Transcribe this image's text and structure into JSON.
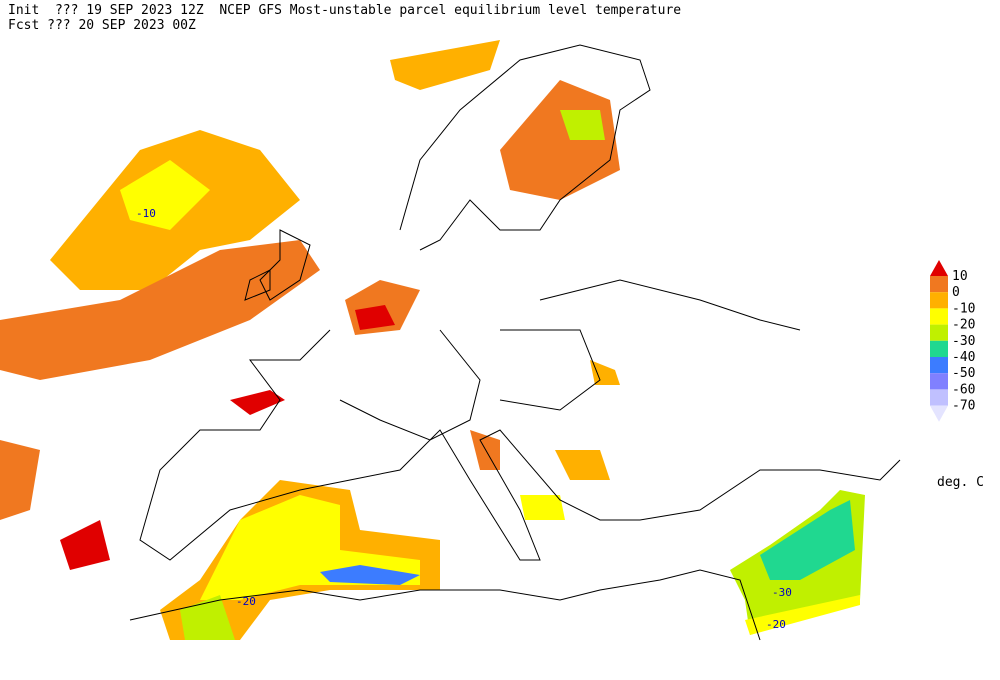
{
  "header": {
    "line1": "Init  ??? 19 SEP 2023 12Z  NCEP GFS Most-unstable parcel equilibrium level temperature",
    "line2": "Fcst ??? 20 SEP 2023 00Z"
  },
  "legend": {
    "labels": [
      10,
      0,
      -10,
      -20,
      -30,
      -40,
      -50,
      -60,
      -70
    ],
    "colors": [
      "#e00000",
      "#f07820",
      "#ffb000",
      "#ffff00",
      "#c0f000",
      "#20d890",
      "#3c7cff",
      "#8080ff",
      "#c0c0ff",
      "#e4e4ff"
    ],
    "unit": "deg. C"
  },
  "contour_labels": [
    "-10",
    "-20",
    "-30",
    "-20"
  ]
}
